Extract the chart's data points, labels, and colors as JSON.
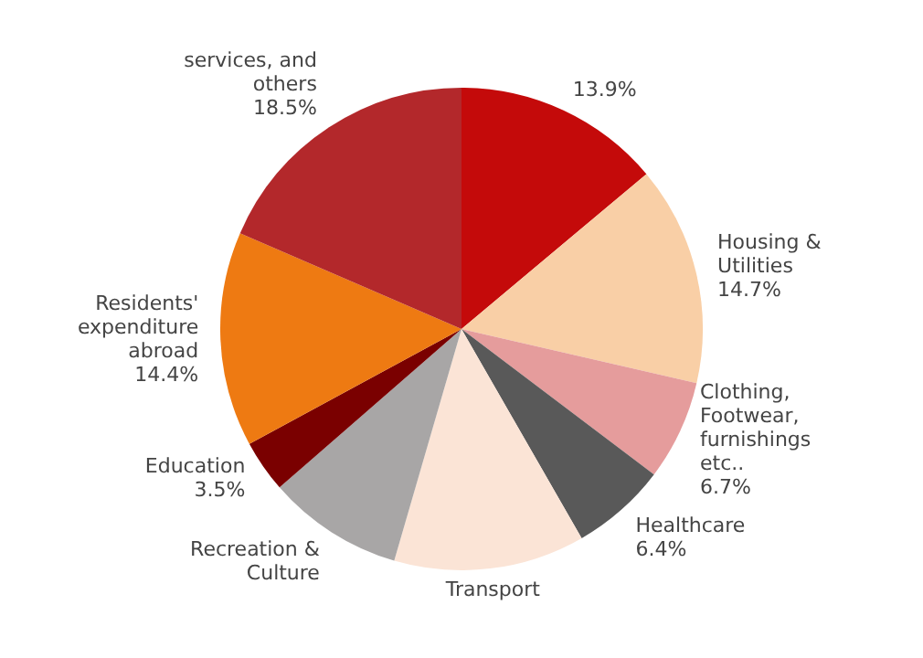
{
  "chart_data": {
    "type": "pie",
    "categories": [
      null,
      "Housing &\nUtilities",
      "Clothing,\nFootwear,\nfurnishings\netc..",
      "Healthcare",
      "Transport",
      "Recreation &\nCulture",
      "Education",
      "Residents'\nexpenditure\nabroad",
      "services, and\nothers"
    ],
    "values": [
      13.9,
      14.7,
      6.7,
      6.4,
      12.8,
      9.1,
      3.5,
      14.4,
      18.5
    ],
    "value_labels": [
      "13.9%",
      "14.7%",
      "6.7%",
      "6.4%",
      null,
      null,
      "3.5%",
      "14.4%",
      "18.5%"
    ],
    "colors": [
      "#c40a0a",
      "#f9cfa6",
      "#e59c9c",
      "#595959",
      "#fbe4d6",
      "#a8a6a6",
      "#7a0000",
      "#ee7a12",
      "#b3282b"
    ],
    "legend": false
  }
}
